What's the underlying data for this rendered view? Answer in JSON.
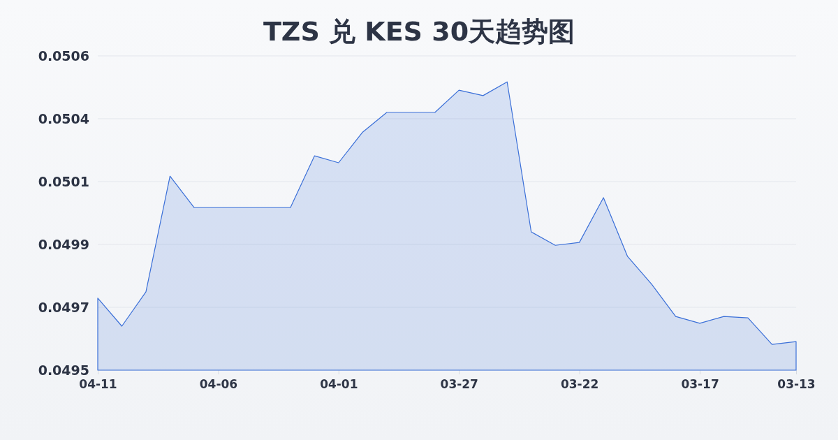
{
  "chart_data": {
    "type": "area",
    "title": "TZS 兑 KES 30天趋势图",
    "categories": [
      "04-11",
      null,
      null,
      null,
      null,
      "04-06",
      null,
      null,
      null,
      null,
      "04-01",
      null,
      null,
      null,
      null,
      "03-27",
      null,
      null,
      null,
      null,
      "03-22",
      null,
      null,
      null,
      null,
      "03-17",
      null,
      null,
      null,
      "03-13"
    ],
    "series": [
      {
        "color": "#3a6fd8",
        "values": [
          0.049732,
          0.049634,
          0.049754,
          0.050159,
          0.050049,
          0.050049,
          0.050049,
          0.050049,
          0.050049,
          0.05023,
          0.050206,
          0.050313,
          0.050382,
          0.050382,
          0.050382,
          0.05046,
          0.050441,
          0.050489,
          0.049964,
          0.049917,
          0.049927,
          0.050084,
          0.049878,
          0.049781,
          0.049668,
          0.049644,
          0.049668,
          0.049663,
          0.04957,
          0.04958
        ]
      }
    ],
    "ylim": [
      0.04948,
      0.05058
    ],
    "yticks": [
      {
        "value": 0.04948,
        "label": "0.0495"
      },
      {
        "value": 0.0497,
        "label": "0.0497"
      },
      {
        "value": 0.04992,
        "label": "0.0499"
      },
      {
        "value": 0.05014,
        "label": "0.0501"
      },
      {
        "value": 0.05036,
        "label": "0.0504"
      },
      {
        "value": 0.05058,
        "label": "0.0506"
      }
    ],
    "grid": "y"
  }
}
